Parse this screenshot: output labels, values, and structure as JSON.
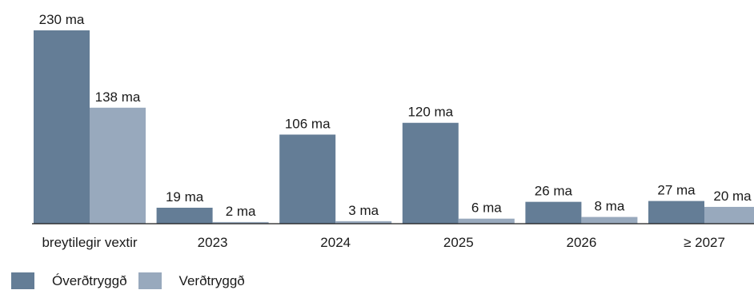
{
  "chart_data": {
    "type": "bar",
    "categories": [
      "breytilegir vextir",
      "2023",
      "2024",
      "2025",
      "2026",
      "≥ 2027"
    ],
    "series": [
      {
        "name": "Óverðtryggð",
        "values": [
          230,
          19,
          106,
          120,
          26,
          27
        ],
        "labels": [
          "230 ma",
          "19 ma",
          "106 ma",
          "120 ma",
          "26 ma",
          "27 ma"
        ]
      },
      {
        "name": "Verðtryggð",
        "values": [
          138,
          2,
          3,
          6,
          8,
          20
        ],
        "labels": [
          "138 ma",
          "2 ma",
          "3 ma",
          "6 ma",
          "8 ma",
          "20 ma"
        ]
      }
    ],
    "unit": "ma",
    "ylim": [
      0,
      230
    ],
    "grid": false,
    "legend_position": "bottom-left"
  },
  "colors": {
    "overdtryggd": "#647d96",
    "verdtryggd": "#98a9bd",
    "axis": "#1a1a1a"
  }
}
